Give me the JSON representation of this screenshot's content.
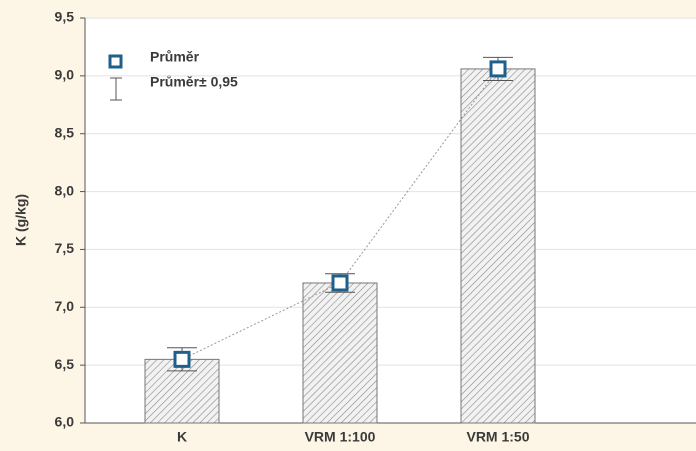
{
  "chart_data": {
    "type": "bar",
    "ylabel": "K (g/kg)",
    "categories": [
      "K",
      "VRM 1:100",
      "VRM 1:50"
    ],
    "values": [
      6.55,
      7.21,
      9.06
    ],
    "errors": [
      0.1,
      0.08,
      0.1
    ],
    "legend": [
      "Průměr",
      "Průměr± 0,95"
    ],
    "color": "#1f5f8b",
    "ylim": [
      6,
      9.5
    ],
    "yticks": [
      {
        "value": 6,
        "label": "6,0"
      },
      {
        "value": 6.5,
        "label": "6,5"
      },
      {
        "value": 7,
        "label": "7,0"
      },
      {
        "value": 7.5,
        "label": "7,5"
      },
      {
        "value": 8,
        "label": "8,0"
      },
      {
        "value": 8.5,
        "label": "8,5"
      },
      {
        "value": 9,
        "label": "9,0"
      },
      {
        "value": 9.5,
        "label": "9,5"
      }
    ],
    "grid": true
  }
}
